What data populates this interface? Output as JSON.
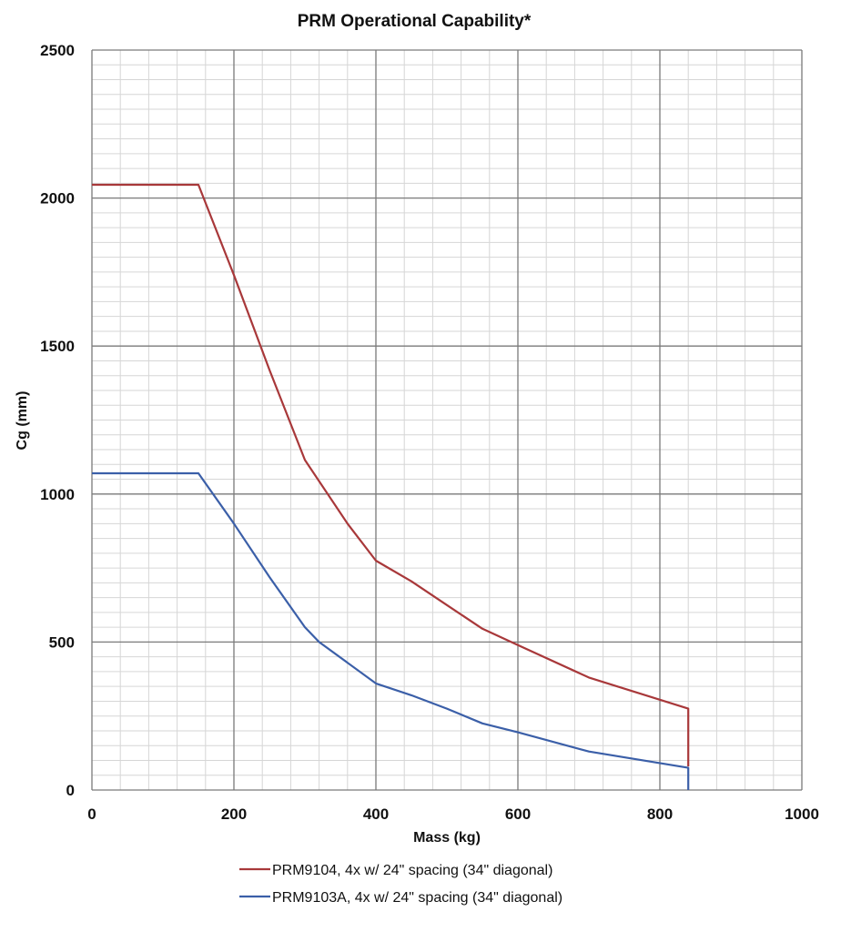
{
  "chart_data": {
    "type": "line",
    "title": "PRM Operational Capability*",
    "xlabel": "Mass (kg)",
    "ylabel": "Cg (mm)",
    "xlim": [
      0,
      1000
    ],
    "ylim": [
      0,
      2500
    ],
    "x_ticks": [
      "0",
      "200",
      "400",
      "600",
      "800",
      "1000"
    ],
    "y_ticks": [
      "0",
      "500",
      "1000",
      "1500",
      "2000",
      "2500"
    ],
    "grid": true,
    "legend_position": "bottom",
    "series": [
      {
        "name": "PRM9104, 4x w/ 24\" spacing (34\" diagonal)",
        "color": "#a8383a",
        "x": [
          0,
          150,
          200,
          250,
          300,
          360,
          400,
          450,
          500,
          550,
          600,
          700,
          840,
          840
        ],
        "y": [
          2045,
          2045,
          1740,
          1420,
          1115,
          900,
          775,
          705,
          625,
          545,
          490,
          380,
          275,
          80
        ]
      },
      {
        "name": "PRM9103A, 4x w/ 24\" spacing (34\" diagonal)",
        "color": "#3b5fa8",
        "x": [
          0,
          150,
          200,
          250,
          300,
          320,
          400,
          450,
          500,
          550,
          600,
          700,
          840,
          840
        ],
        "y": [
          1070,
          1070,
          900,
          720,
          550,
          500,
          360,
          320,
          275,
          225,
          195,
          130,
          75,
          0
        ]
      }
    ]
  }
}
